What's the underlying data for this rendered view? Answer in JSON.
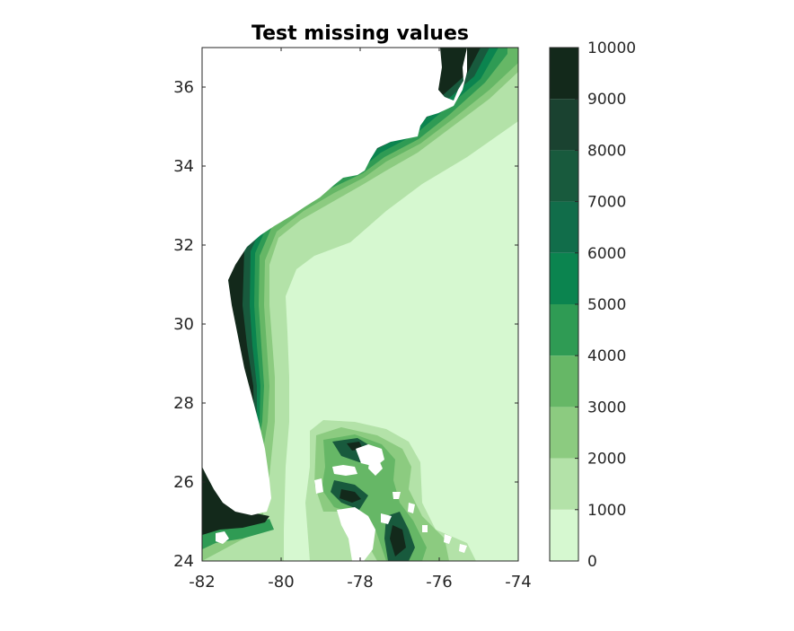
{
  "chart_data": {
    "type": "heatmap",
    "subtype": "filled-contour",
    "title": "Test missing values",
    "xlabel": "",
    "ylabel": "",
    "xlim": [
      -82,
      -74
    ],
    "ylim": [
      24,
      37
    ],
    "x_ticks": [
      "-82",
      "-80",
      "-78",
      "-76",
      "-74"
    ],
    "y_ticks": [
      "24",
      "26",
      "28",
      "30",
      "32",
      "34",
      "36"
    ],
    "colorbar": {
      "range": [
        0,
        10000
      ],
      "ticks": [
        "0",
        "1000",
        "2000",
        "3000",
        "4000",
        "5000",
        "6000",
        "7000",
        "8000",
        "9000",
        "10000"
      ],
      "levels": [
        0,
        1000,
        2000,
        3000,
        4000,
        5000,
        6000,
        7000,
        8000,
        9000,
        10000
      ],
      "colors": [
        "#d6f8d0",
        "#b3e2a8",
        "#8ccb80",
        "#66b766",
        "#2f9b54",
        "#0b844f",
        "#116d4a",
        "#185a3d",
        "#1a4230",
        "#13291b"
      ]
    },
    "missing_value_color": "#ffffff",
    "grid": false
  }
}
